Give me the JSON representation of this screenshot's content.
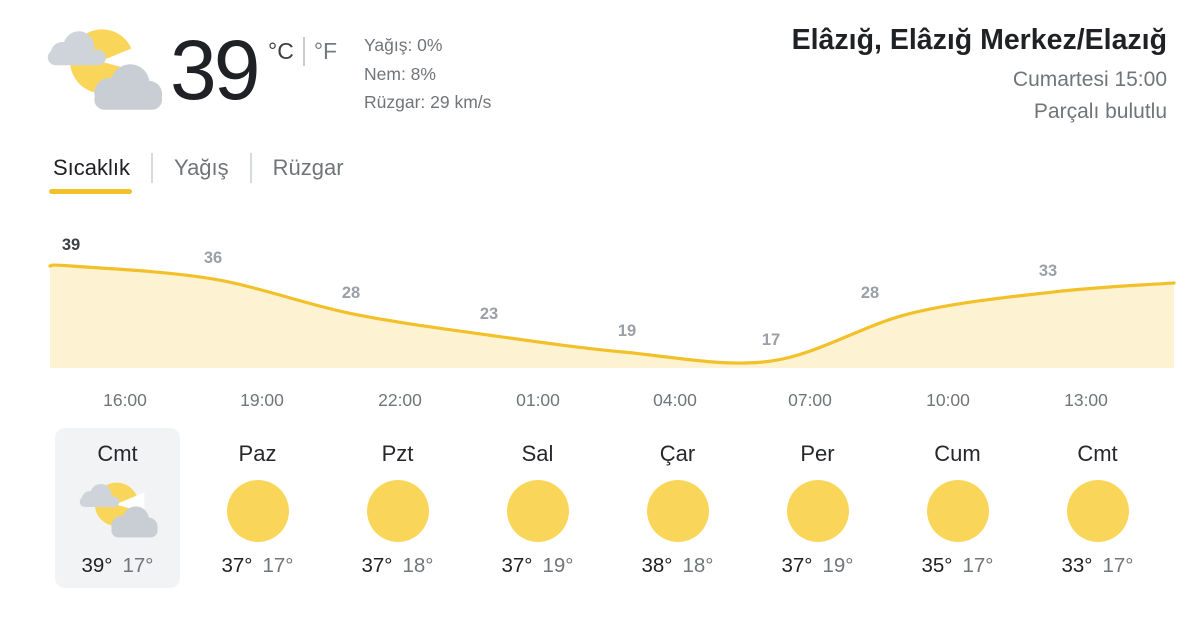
{
  "header": {
    "current_temp": "39",
    "unit_celsius": "°C",
    "unit_fahrenheit": "°F",
    "precipitation": "Yağış: 0%",
    "humidity": "Nem: 8%",
    "wind": "Rüzgar: 29 km/s",
    "location": "Elâzığ, Elâzığ Merkez/Elazığ",
    "datetime": "Cumartesi 15:00",
    "condition": "Parçalı bulutlu",
    "condition_icon": "partly-cloudy-icon"
  },
  "tabs": [
    {
      "label": "Sıcaklık",
      "active": true
    },
    {
      "label": "Yağış",
      "active": false
    },
    {
      "label": "Rüzgar",
      "active": false
    }
  ],
  "chart_data": {
    "type": "area",
    "title": "Sıcaklık (saatlik sıcaklık)",
    "values": [
      39,
      36,
      28,
      23,
      19,
      17,
      28,
      33
    ],
    "x_tick_labels": [
      "16:00",
      "19:00",
      "22:00",
      "01:00",
      "04:00",
      "07:00",
      "10:00",
      "13:00"
    ],
    "ylabel": "",
    "xlabel": "",
    "ylim": [
      15,
      41
    ],
    "grid": false,
    "legend": false,
    "line_color": "#f2c029",
    "fill_color": "#fdf3d2",
    "emphasized_point_index": 0
  },
  "forecast": {
    "days": [
      {
        "name": "Cmt",
        "icon": "partly-cloudy",
        "high": "39°",
        "low": "17°",
        "selected": true
      },
      {
        "name": "Paz",
        "icon": "sunny",
        "high": "37°",
        "low": "17°",
        "selected": false
      },
      {
        "name": "Pzt",
        "icon": "sunny",
        "high": "37°",
        "low": "18°",
        "selected": false
      },
      {
        "name": "Sal",
        "icon": "sunny",
        "high": "37°",
        "low": "19°",
        "selected": false
      },
      {
        "name": "Çar",
        "icon": "sunny",
        "high": "38°",
        "low": "18°",
        "selected": false
      },
      {
        "name": "Per",
        "icon": "sunny",
        "high": "37°",
        "low": "19°",
        "selected": false
      },
      {
        "name": "Cum",
        "icon": "sunny",
        "high": "35°",
        "low": "17°",
        "selected": false
      },
      {
        "name": "Cmt",
        "icon": "sunny",
        "high": "33°",
        "low": "17°",
        "selected": false
      }
    ]
  },
  "colors": {
    "accent_yellow": "#f2c029",
    "chart_fill": "#fdf3d2",
    "sun_yellow": "#f9d65a",
    "cloud_gray_light": "#cfd4da",
    "cloud_gray_dark": "#c9ced4",
    "selected_card_bg": "#f1f3f4",
    "primary_text": "#202124",
    "secondary_text": "#70757a"
  }
}
